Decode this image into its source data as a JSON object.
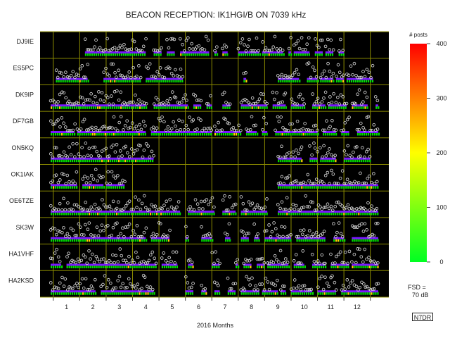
{
  "chart_data": {
    "type": "scatter",
    "title": "BEACON RECEPTION: IK1HGI/B ON 7039 kHz",
    "xlabel": "2016 Months",
    "months": [
      "1",
      "2",
      "3",
      "4",
      "5",
      "6",
      "7",
      "8",
      "9",
      "10",
      "11",
      "12"
    ],
    "stations": [
      {
        "name": "DJ9IE",
        "active": [
          [
            1.7,
            4.0
          ],
          [
            4.3,
            4.6
          ],
          [
            4.8,
            5.1
          ],
          [
            5.3,
            6.4
          ],
          [
            6.6,
            6.7
          ],
          [
            6.9,
            7.1
          ],
          [
            7.5,
            8.3
          ],
          [
            8.4,
            9.2
          ],
          [
            9.4,
            9.5
          ],
          [
            9.6,
            10.2
          ],
          [
            10.4,
            10.7
          ],
          [
            10.8,
            11.1
          ],
          [
            11.3,
            11.5
          ]
        ]
      },
      {
        "name": "ES5PC",
        "active": [
          [
            0.6,
            1.8
          ],
          [
            2.4,
            3.8
          ],
          [
            4.0,
            5.4
          ],
          [
            7.7,
            7.8
          ],
          [
            9.0,
            9.8
          ],
          [
            10.1,
            10.5
          ],
          [
            10.6,
            11.1
          ],
          [
            11.2,
            11.5
          ],
          [
            11.6,
            12.6
          ]
        ]
      },
      {
        "name": "DK9IP",
        "active": [
          [
            0.4,
            4.0
          ],
          [
            4.3,
            5.6
          ],
          [
            5.8,
            6.1
          ],
          [
            6.3,
            6.5
          ],
          [
            6.9,
            7.2
          ],
          [
            7.6,
            8.6
          ],
          [
            8.8,
            9.3
          ],
          [
            9.5,
            10.0
          ],
          [
            10.3,
            10.8
          ],
          [
            10.9,
            11.6
          ],
          [
            11.8,
            12.4
          ],
          [
            12.7,
            12.8
          ]
        ]
      },
      {
        "name": "DF7GB",
        "active": [
          [
            0.4,
            1.3
          ],
          [
            1.4,
            4.0
          ],
          [
            4.2,
            6.5
          ],
          [
            6.6,
            7.6
          ],
          [
            7.8,
            8.2
          ],
          [
            8.4,
            8.6
          ],
          [
            8.9,
            10.5
          ],
          [
            10.7,
            11.2
          ],
          [
            11.4,
            11.7
          ],
          [
            12.0,
            12.8
          ]
        ]
      },
      {
        "name": "ON5KQ",
        "active": [
          [
            0.4,
            4.3
          ],
          [
            9.0,
            9.9
          ],
          [
            10.2,
            10.5
          ],
          [
            10.6,
            11.2
          ],
          [
            11.5,
            12.5
          ]
        ]
      },
      {
        "name": "OK1IAK",
        "active": [
          [
            0.4,
            1.4
          ],
          [
            1.6,
            2.4
          ],
          [
            2.5,
            3.2
          ],
          [
            9.0,
            12.8
          ]
        ]
      },
      {
        "name": "OE6TZE",
        "active": [
          [
            0.4,
            5.3
          ],
          [
            5.6,
            6.6
          ],
          [
            6.9,
            7.4
          ],
          [
            7.6,
            8.6
          ],
          [
            9.0,
            12.8
          ]
        ]
      },
      {
        "name": "SK3W",
        "active": [
          [
            0.4,
            4.0
          ],
          [
            4.2,
            4.9
          ],
          [
            5.5,
            5.6
          ],
          [
            6.1,
            6.5
          ],
          [
            7.0,
            7.2
          ],
          [
            7.6,
            7.9
          ],
          [
            8.1,
            8.3
          ],
          [
            8.5,
            9.5
          ],
          [
            9.7,
            10.8
          ],
          [
            11.1,
            11.5
          ],
          [
            11.8,
            12.8
          ]
        ]
      },
      {
        "name": "HA1VHF",
        "active": [
          [
            0.4,
            0.8
          ],
          [
            1.0,
            4.4
          ],
          [
            4.6,
            5.2
          ],
          [
            5.6,
            5.8
          ],
          [
            6.5,
            6.8
          ],
          [
            7.4,
            7.5
          ],
          [
            7.7,
            8.0
          ],
          [
            8.2,
            8.5
          ],
          [
            8.6,
            9.4
          ],
          [
            9.6,
            10.0
          ],
          [
            10.3,
            10.8
          ],
          [
            11.0,
            11.7
          ],
          [
            11.8,
            12.8
          ]
        ]
      },
      {
        "name": "HA2KSD",
        "active": [
          [
            0.4,
            2.1
          ],
          [
            2.3,
            4.3
          ],
          [
            5.5,
            5.8
          ],
          [
            6.1,
            6.3
          ],
          [
            6.6,
            6.8
          ],
          [
            7.1,
            7.4
          ],
          [
            7.6,
            8.3
          ],
          [
            8.4,
            9.0
          ],
          [
            9.1,
            9.3
          ],
          [
            9.5,
            10.3
          ],
          [
            10.5,
            11.2
          ],
          [
            11.4,
            12.8
          ]
        ]
      }
    ],
    "colorbar": {
      "label": "# posts",
      "min": 0,
      "max": 400,
      "ticks": [
        "0",
        "100",
        "200",
        "300",
        "400"
      ],
      "colors": [
        "#00ff22",
        "#ffff00",
        "#ff0000"
      ]
    },
    "fsd_line1": "FSD =",
    "fsd_line2": "70 dB",
    "credit": "N7DR",
    "colors": {
      "plot_bg": "#000000",
      "grid": "#8c8c00",
      "line": "#7b16ff",
      "marker": "#dddddd",
      "count_low": "#00e000",
      "count_mid": "#ffd800",
      "count_high": "#ff2000"
    }
  }
}
